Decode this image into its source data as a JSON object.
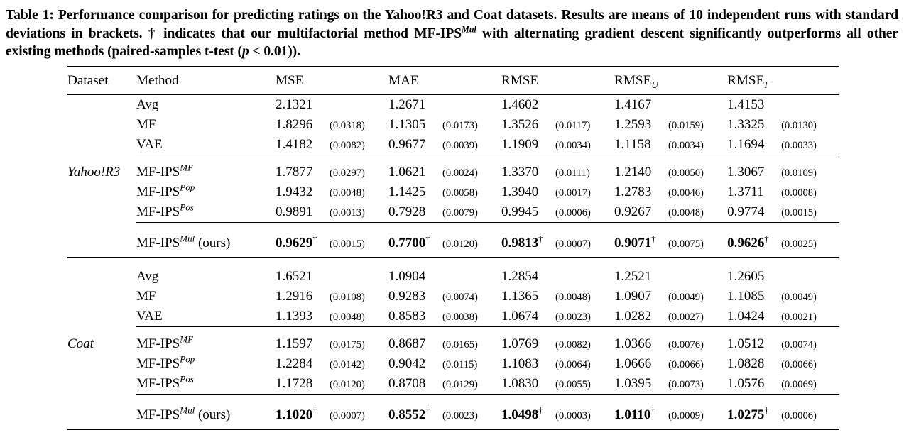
{
  "colors": {
    "text": "#000000",
    "background": "#ffffff"
  },
  "caption": {
    "part1": "Table 1: Performance comparison for predicting ratings on the Yahoo!R3 and Coat datasets. Results are means of 10 independent runs with standard deviations in brackets. † indicates that our multifactorial method MF-IPS",
    "method_sup": "Mul",
    "part2": " with alternating gradient descent significantly outperforms all other existing methods (paired-samples t-test (",
    "p_symbol": "p",
    "part3": " < 0.01))."
  },
  "table": {
    "dagger": "†",
    "header": {
      "dataset": "Dataset",
      "method": "Method",
      "metrics": [
        {
          "label": "MSE",
          "sub": ""
        },
        {
          "label": "MAE",
          "sub": ""
        },
        {
          "label": "RMSE",
          "sub": ""
        },
        {
          "label": "RMSE",
          "sub": "U"
        },
        {
          "label": "RMSE",
          "sub": "I"
        }
      ]
    },
    "groups": [
      {
        "dataset": "Yahoo!R3",
        "sections": [
          {
            "rows": [
              {
                "method": {
                  "base": "Avg"
                },
                "values": [
                  {
                    "v": "2.1321",
                    "std": ""
                  },
                  {
                    "v": "1.2671",
                    "std": ""
                  },
                  {
                    "v": "1.4602",
                    "std": ""
                  },
                  {
                    "v": "1.4167",
                    "std": ""
                  },
                  {
                    "v": "1.4153",
                    "std": ""
                  }
                ]
              },
              {
                "method": {
                  "base": "MF"
                },
                "values": [
                  {
                    "v": "1.8296",
                    "std": "(0.0318)"
                  },
                  {
                    "v": "1.1305",
                    "std": "(0.0173)"
                  },
                  {
                    "v": "1.3526",
                    "std": "(0.0117)"
                  },
                  {
                    "v": "1.2593",
                    "std": "(0.0159)"
                  },
                  {
                    "v": "1.3325",
                    "std": "(0.0130)"
                  }
                ]
              },
              {
                "method": {
                  "base": "VAE"
                },
                "values": [
                  {
                    "v": "1.4182",
                    "std": "(0.0082)"
                  },
                  {
                    "v": "0.9677",
                    "std": "(0.0039)"
                  },
                  {
                    "v": "1.1909",
                    "std": "(0.0034)"
                  },
                  {
                    "v": "1.1158",
                    "std": "(0.0034)"
                  },
                  {
                    "v": "1.1694",
                    "std": "(0.0033)"
                  }
                ]
              }
            ]
          },
          {
            "rows": [
              {
                "method": {
                  "base": "MF-IPS",
                  "sup": "MF"
                },
                "show_dataset": true,
                "values": [
                  {
                    "v": "1.7877",
                    "std": "(0.0297)"
                  },
                  {
                    "v": "1.0621",
                    "std": "(0.0024)"
                  },
                  {
                    "v": "1.3370",
                    "std": "(0.0111)"
                  },
                  {
                    "v": "1.2140",
                    "std": "(0.0050)"
                  },
                  {
                    "v": "1.3067",
                    "std": "(0.0109)"
                  }
                ]
              },
              {
                "method": {
                  "base": "MF-IPS",
                  "sup": "Pop"
                },
                "values": [
                  {
                    "v": "1.9432",
                    "std": "(0.0048)"
                  },
                  {
                    "v": "1.1425",
                    "std": "(0.0058)"
                  },
                  {
                    "v": "1.3940",
                    "std": "(0.0017)"
                  },
                  {
                    "v": "1.2783",
                    "std": "(0.0046)"
                  },
                  {
                    "v": "1.3711",
                    "std": "(0.0008)"
                  }
                ]
              },
              {
                "method": {
                  "base": "MF-IPS",
                  "sup": "Pos"
                },
                "values": [
                  {
                    "v": "0.9891",
                    "std": "(0.0013)"
                  },
                  {
                    "v": "0.7928",
                    "std": "(0.0079)"
                  },
                  {
                    "v": "0.9945",
                    "std": "(0.0006)"
                  },
                  {
                    "v": "0.9267",
                    "std": "(0.0048)"
                  },
                  {
                    "v": "0.9774",
                    "std": "(0.0015)"
                  }
                ]
              }
            ]
          },
          {
            "rows": [
              {
                "method": {
                  "base": "MF-IPS",
                  "sup": "Mul",
                  "suffix": " (ours)"
                },
                "ours": true,
                "values": [
                  {
                    "v": "0.9629",
                    "std": "(0.0015)"
                  },
                  {
                    "v": "0.7700",
                    "std": "(0.0120)"
                  },
                  {
                    "v": "0.9813",
                    "std": "(0.0007)"
                  },
                  {
                    "v": "0.9071",
                    "std": "(0.0075)"
                  },
                  {
                    "v": "0.9626",
                    "std": "(0.0025)"
                  }
                ]
              }
            ]
          }
        ]
      },
      {
        "dataset": "Coat",
        "sections": [
          {
            "rows": [
              {
                "method": {
                  "base": "Avg"
                },
                "values": [
                  {
                    "v": "1.6521",
                    "std": ""
                  },
                  {
                    "v": "1.0904",
                    "std": ""
                  },
                  {
                    "v": "1.2854",
                    "std": ""
                  },
                  {
                    "v": "1.2521",
                    "std": ""
                  },
                  {
                    "v": "1.2605",
                    "std": ""
                  }
                ]
              },
              {
                "method": {
                  "base": "MF"
                },
                "values": [
                  {
                    "v": "1.2916",
                    "std": "(0.0108)"
                  },
                  {
                    "v": "0.9283",
                    "std": "(0.0074)"
                  },
                  {
                    "v": "1.1365",
                    "std": "(0.0048)"
                  },
                  {
                    "v": "1.0907",
                    "std": "(0.0049)"
                  },
                  {
                    "v": "1.1085",
                    "std": "(0.0049)"
                  }
                ]
              },
              {
                "method": {
                  "base": "VAE"
                },
                "values": [
                  {
                    "v": "1.1393",
                    "std": "(0.0048)"
                  },
                  {
                    "v": "0.8583",
                    "std": "(0.0038)"
                  },
                  {
                    "v": "1.0674",
                    "std": "(0.0023)"
                  },
                  {
                    "v": "1.0282",
                    "std": "(0.0027)"
                  },
                  {
                    "v": "1.0424",
                    "std": "(0.0021)"
                  }
                ]
              }
            ]
          },
          {
            "rows": [
              {
                "method": {
                  "base": "MF-IPS",
                  "sup": "MF"
                },
                "show_dataset": true,
                "values": [
                  {
                    "v": "1.1597",
                    "std": "(0.0175)"
                  },
                  {
                    "v": "0.8687",
                    "std": "(0.0165)"
                  },
                  {
                    "v": "1.0769",
                    "std": "(0.0082)"
                  },
                  {
                    "v": "1.0366",
                    "std": "(0.0076)"
                  },
                  {
                    "v": "1.0512",
                    "std": "(0.0074)"
                  }
                ]
              },
              {
                "method": {
                  "base": "MF-IPS",
                  "sup": "Pop"
                },
                "values": [
                  {
                    "v": "1.2284",
                    "std": "(0.0142)"
                  },
                  {
                    "v": "0.9042",
                    "std": "(0.0115)"
                  },
                  {
                    "v": "1.1083",
                    "std": "(0.0064)"
                  },
                  {
                    "v": "1.0666",
                    "std": "(0.0066)"
                  },
                  {
                    "v": "1.0828",
                    "std": "(0.0066)"
                  }
                ]
              },
              {
                "method": {
                  "base": "MF-IPS",
                  "sup": "Pos"
                },
                "values": [
                  {
                    "v": "1.1728",
                    "std": "(0.0120)"
                  },
                  {
                    "v": "0.8708",
                    "std": "(0.0129)"
                  },
                  {
                    "v": "1.0830",
                    "std": "(0.0055)"
                  },
                  {
                    "v": "1.0395",
                    "std": "(0.0073)"
                  },
                  {
                    "v": "1.0576",
                    "std": "(0.0069)"
                  }
                ]
              }
            ]
          },
          {
            "rows": [
              {
                "method": {
                  "base": "MF-IPS",
                  "sup": "Mul",
                  "suffix": " (ours)"
                },
                "ours": true,
                "values": [
                  {
                    "v": "1.1020",
                    "std": "(0.0007)"
                  },
                  {
                    "v": "0.8552",
                    "std": "(0.0023)"
                  },
                  {
                    "v": "1.0498",
                    "std": "(0.0003)"
                  },
                  {
                    "v": "1.0110",
                    "std": "(0.0009)"
                  },
                  {
                    "v": "1.0275",
                    "std": "(0.0006)"
                  }
                ]
              }
            ]
          }
        ]
      }
    ]
  }
}
